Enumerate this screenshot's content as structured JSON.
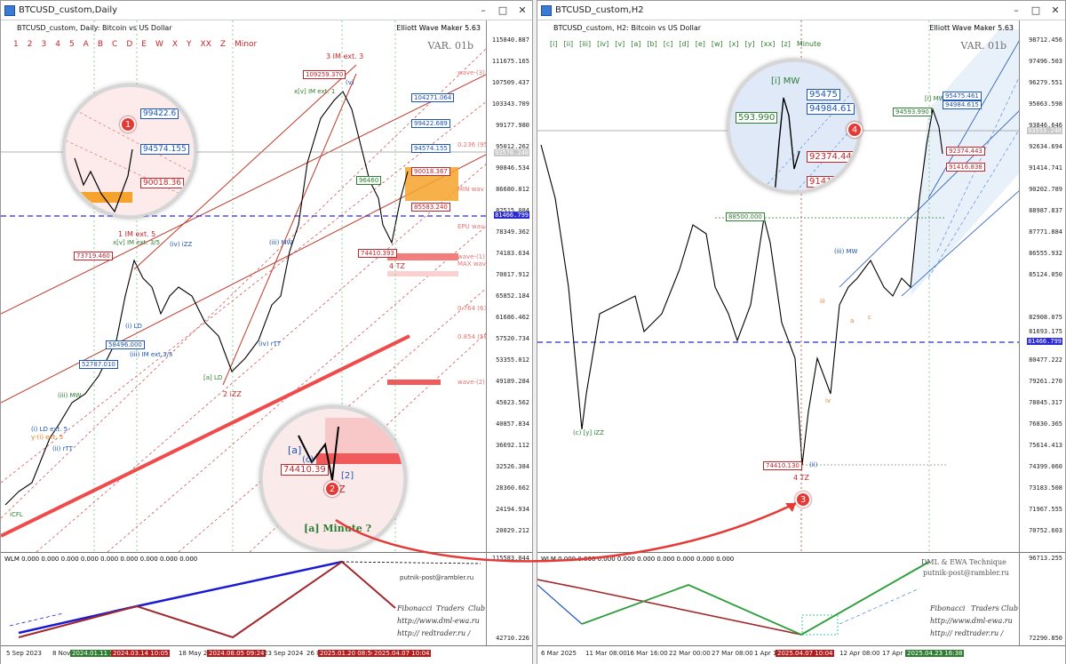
{
  "left": {
    "title": "BTCUSD_custom,Daily",
    "sym": "BTCUSD_custom, Daily: Bitcoin vs US Dollar",
    "maker": "Elliott Wave Maker 5.63",
    "var": "VAR. 01b",
    "degree_labels": [
      "1",
      "2",
      "3",
      "4",
      "5",
      "A",
      "B",
      "C",
      "D",
      "E",
      "W",
      "X",
      "Y",
      "XX",
      "Z",
      "Minor"
    ],
    "prices": [
      "115840.887",
      "111675.165",
      "107509.437",
      "103343.709",
      "99177.980",
      "95012.262",
      "90846.534",
      "86680.812",
      "82515.084",
      "78349.362",
      "74183.634",
      "70017.912",
      "65852.184",
      "61686.462",
      "57520.734",
      "53355.012",
      "49189.284",
      "45023.562",
      "40857.834",
      "36692.112",
      "32526.384",
      "28360.662",
      "24194.934",
      "20029.212"
    ],
    "price_tags": {
      "current": "93576.240",
      "dashed": "81466.799"
    },
    "boxes": [
      "104271.064",
      "99422.689",
      "94574.155",
      "90018.367",
      "85583.240",
      "74410.393",
      "73719.460",
      "58496.000",
      "52787.010",
      "109259.370",
      "96460"
    ],
    "wave_labels": [
      "3 IM ext. 3",
      "1 IM ext. 5",
      "x[v] IM ext. 3/5",
      "x[v] IM ext. 1",
      "2 iZZ",
      "4 TZ",
      "(iv) iZZ",
      "(iii) MW",
      "[a] LD",
      "(i) LD ext. 5",
      "y-(i) ext. 5",
      "(ii) rTT",
      "(iii) IM ext.3/5",
      "iCFL",
      "(v)",
      "(i) LD",
      "(iii) MW",
      "(iv) rTT"
    ],
    "fib_labels": [
      "0.236 (95",
      "wave-(3)",
      "MIN wav",
      "EPU wav",
      "wave-(1)",
      "MAX wave",
      "0.764 (63",
      "0.854 (58",
      "wave-(2)"
    ],
    "ind_header": "WLM 0.000 0.000 0.000 0.000 0.000 0.000 0.000 0.000 0.000",
    "ind_prices": [
      "115583.044",
      "42710.226"
    ],
    "dates": [
      "5 Sep 2023",
      "8 Nov",
      "2024.01.11 16",
      "2024.03.14 10:05",
      "18 May 2",
      "2024.08.05 09:24",
      "23 Sep 2024",
      "26 I",
      "2025.01.20 08:56",
      "2025.04.07 10:04"
    ],
    "credit": [
      "Fibonacci",
      "Traders",
      "Club",
      "http://www.dml-ewa.ru",
      "http:// redtrader.ru /",
      "putnik-post@rambler.ru"
    ],
    "mag1": {
      "badge": "1",
      "vals": [
        "99422.6",
        "94574.155",
        "90018.36"
      ]
    },
    "mag2": {
      "badge": "2",
      "vals": [
        "[a]",
        "(c)",
        "74410.39",
        "4 TZ",
        "[2]"
      ],
      "caption": "[a] Minute ?"
    }
  },
  "right": {
    "title": "BTCUSD_custom,H2",
    "sym": "BTCUSD_custom, H2: Bitcoin vs US Dollar",
    "maker": "Elliott Wave Maker 5.63",
    "var": "VAR. 01b",
    "degree_labels": [
      "[i]",
      "[ii]",
      "[iii]",
      "[iv]",
      "[v]",
      "[a]",
      "[b]",
      "[c]",
      "[d]",
      "[e]",
      "[w]",
      "[x]",
      "[y]",
      "[xx]",
      "[z]",
      "Minute"
    ],
    "prices": [
      "98712.456",
      "97496.503",
      "96279.551",
      "95063.598",
      "93846.646",
      "92634.694",
      "91414.741",
      "90202.789",
      "88987.837",
      "87771.884",
      "86555.932",
      "85124.050",
      "82908.075",
      "81693.175",
      "80477.222",
      "79261.270",
      "78045.317",
      "76830.365",
      "75614.413",
      "74399.060",
      "73183.508",
      "71967.555",
      "70752.603"
    ],
    "price_tags": {
      "current": "93553.240",
      "dashed": "81466.799"
    },
    "boxes": [
      "95475.461",
      "94984.615",
      "94593.990",
      "92374.443",
      "91416.838",
      "88500.000",
      "74410.130"
    ],
    "wave_labels": [
      "[i] MW",
      "(iii) MW",
      "(c) [y] iZZ",
      "4 TZ",
      "a",
      "c",
      "iv",
      "iii",
      "(ii)"
    ],
    "ind_header": "WLM 0.000 0.000 0.000 0.000 0.000 0.000 0.000 0.000 0.000",
    "ind_prices": [
      "96713.255",
      "72290.850"
    ],
    "dates": [
      "6 Mar 2025",
      "11 Mar 08:00",
      "16 Mar 16:00",
      "22 Mar 00:00",
      "27 Mar 08:00",
      "1 Apr 16",
      "2025.04.07 10:04",
      "12 Apr 08:00",
      "17 Apr",
      "2025.04.23 16:38"
    ],
    "credit": [
      "DML & EWA Technique",
      "putnik-post@rambler.ru",
      "Fibonacci",
      "Traders",
      "Club",
      "http://www.dml-ewa.ru",
      "http:// redtrader.ru /"
    ],
    "mag3": {
      "badge": "3"
    },
    "mag4": {
      "badge": "4",
      "vals": [
        "[i] MW",
        "95475",
        "94984.61",
        "593.990",
        "92374.443",
        "91416.8"
      ]
    }
  }
}
